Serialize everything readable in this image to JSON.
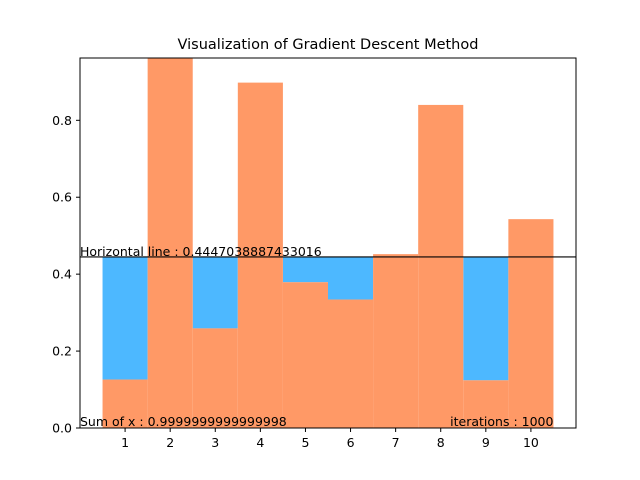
{
  "chart_data": {
    "type": "bar",
    "title": "Visualization of Gradient Descent Method",
    "xlabel": "",
    "ylabel": "",
    "categories": [
      "1",
      "2",
      "3",
      "4",
      "5",
      "6",
      "7",
      "8",
      "9",
      "10"
    ],
    "values": [
      0.126,
      0.962,
      0.259,
      0.898,
      0.379,
      0.334,
      0.452,
      0.84,
      0.124,
      0.543
    ],
    "horizontal_line": 0.4447038887433016,
    "ylim": [
      0,
      0.962
    ],
    "yticks": [
      0.0,
      0.2,
      0.4,
      0.6,
      0.8
    ],
    "ytick_labels": [
      "0.0",
      "0.2",
      "0.4",
      "0.6",
      "0.8"
    ],
    "grid": false,
    "colors": {
      "bar": "#FF9966",
      "gap": "#4DB8FF",
      "line": "#000000"
    },
    "annotations": {
      "horizontal_line_label": "Horizontal line : 0.4447038887433016",
      "sum_label": "Sum of x : 0.9999999999999998",
      "iterations_label": "iterations : 1000"
    }
  }
}
